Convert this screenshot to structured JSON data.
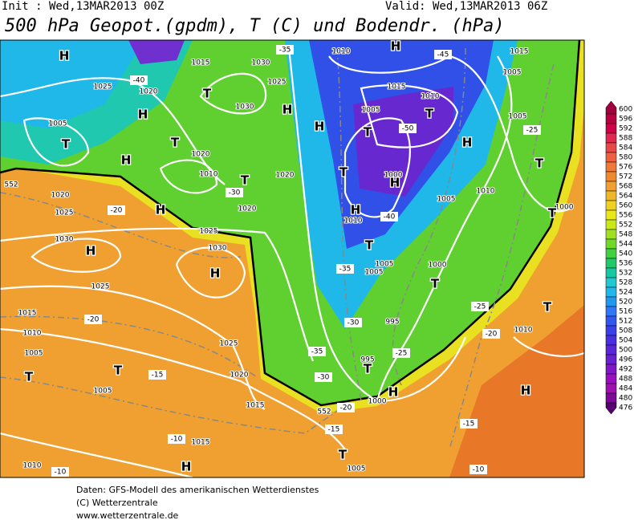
{
  "header": {
    "init": "Init : Wed,13MAR2013 00Z",
    "valid": "Valid: Wed,13MAR2013 06Z",
    "title": "500 hPa Geopot.(gpdm), T (C) und Bodendr. (hPa)"
  },
  "footer": [
    "Daten: GFS-Modell des amerikanischen Wetterdienstes",
    "(C) Wetterzentrale",
    "www.wetterzentrale.de"
  ],
  "colorbar": {
    "ticks": [
      600,
      596,
      592,
      588,
      584,
      580,
      576,
      572,
      568,
      564,
      560,
      556,
      552,
      548,
      544,
      540,
      536,
      532,
      528,
      524,
      520,
      516,
      512,
      508,
      504,
      500,
      496,
      492,
      488,
      484,
      480,
      476
    ],
    "colors": [
      "#a0003c",
      "#b80040",
      "#d00048",
      "#e02850",
      "#e84848",
      "#f06040",
      "#f07838",
      "#f08830",
      "#f0a030",
      "#f0b828",
      "#f0d020",
      "#e8e818",
      "#c8e818",
      "#a0e020",
      "#70d828",
      "#40d040",
      "#20c868",
      "#18c8a0",
      "#20c8d0",
      "#20b8e8",
      "#2098f0",
      "#3078f8",
      "#3058f0",
      "#3840e8",
      "#4830e0",
      "#5828d8",
      "#6820d0",
      "#8018c8",
      "#9810c0",
      "#a010b0",
      "#800898",
      "#580070"
    ]
  },
  "map_labels": [
    "H",
    "1015",
    "1030",
    "-35",
    "1010",
    "H",
    "-45",
    "1015",
    "1025",
    "-40",
    "1020",
    "1025",
    "T",
    "1015",
    "1010",
    "1005",
    "H",
    "1030",
    "H",
    "1005",
    "T",
    "1005",
    "T",
    "H",
    "T",
    "-50",
    "1005",
    "-25",
    "T",
    "H",
    "1020",
    "T",
    "H",
    "T",
    "1010",
    "T",
    "1000",
    "1020",
    "-30",
    "H",
    "1020",
    "1025",
    "-20",
    "H",
    "1005",
    "1010",
    "1000",
    "T",
    "1020",
    "H",
    "1010",
    "-40",
    "1025",
    "1030",
    "H",
    "1030",
    "T",
    "1005",
    "-35",
    "1005",
    "1000",
    "H",
    "T",
    "1025",
    "1015",
    "-20",
    "-30",
    "995",
    "-25",
    "T",
    "1010",
    "1025",
    "-35",
    "-25",
    "1010",
    "-20",
    "1005",
    "T",
    "T",
    "-15",
    "1020",
    "995",
    "T",
    "-30",
    "1005",
    "H",
    "H",
    "1000",
    "1015",
    "-20",
    "-15",
    "-10",
    "1015",
    "-15",
    "T",
    "1005",
    "1010",
    "-10",
    "H",
    "-10",
    "552",
    "552"
  ]
}
